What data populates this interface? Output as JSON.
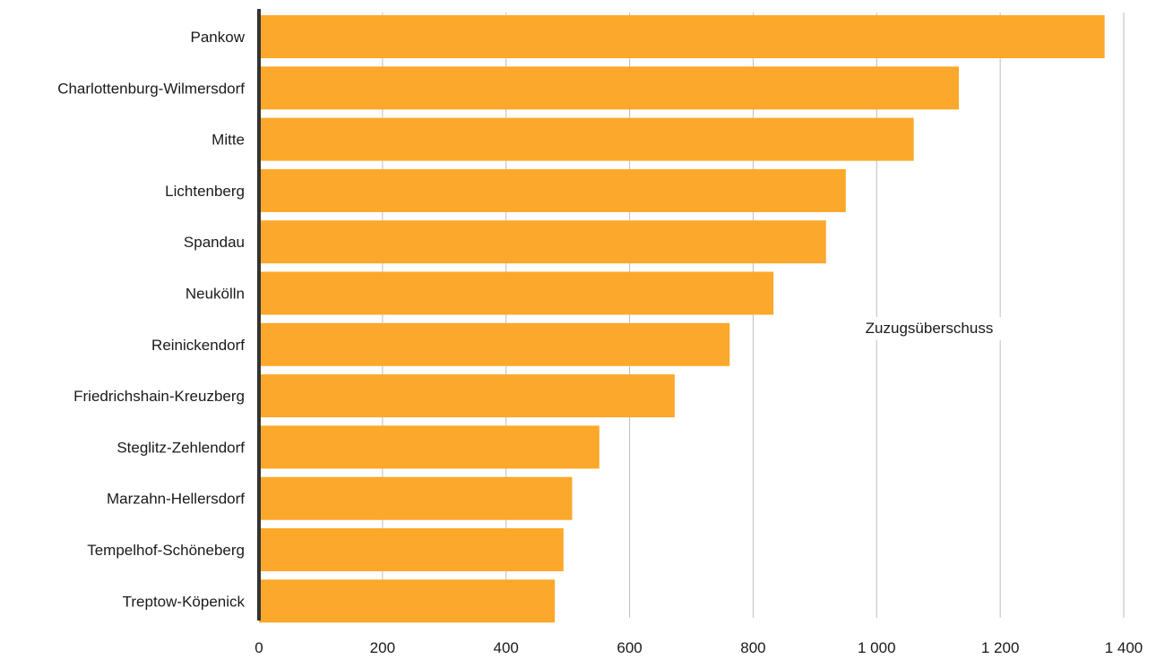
{
  "chart_data": {
    "type": "bar",
    "orientation": "horizontal",
    "categories": [
      "Pankow",
      "Charlottenburg-Wilmersdorf",
      "Mitte",
      "Lichtenberg",
      "Spandau",
      "Neukölln",
      "Reinickendorf",
      "Friedrichshain-Kreuzberg",
      "Steglitz-Zehlendorf",
      "Marzahn-Hellersdorf",
      "Tempelhof-Schöneberg",
      "Treptow-Köpenick"
    ],
    "series": [
      {
        "name": "Zuzugsüberschuss",
        "color": "#fca82a",
        "values": [
          1369,
          1133,
          1060,
          950,
          918,
          833,
          762,
          673,
          551,
          507,
          493,
          479
        ]
      }
    ],
    "xlim": [
      0,
      1400
    ],
    "xticks": [
      0,
      200,
      400,
      600,
      800,
      1000,
      1200,
      1400
    ],
    "xtick_labels": [
      "0",
      "200",
      "400",
      "600",
      "800",
      "1 000",
      "1 200",
      "1 400"
    ],
    "grid": "vertical",
    "title": "",
    "xlabel": "",
    "ylabel": ""
  },
  "colors": {
    "bar": "#fca82a",
    "grid": "#bdbdbd",
    "axis": "#333333"
  }
}
